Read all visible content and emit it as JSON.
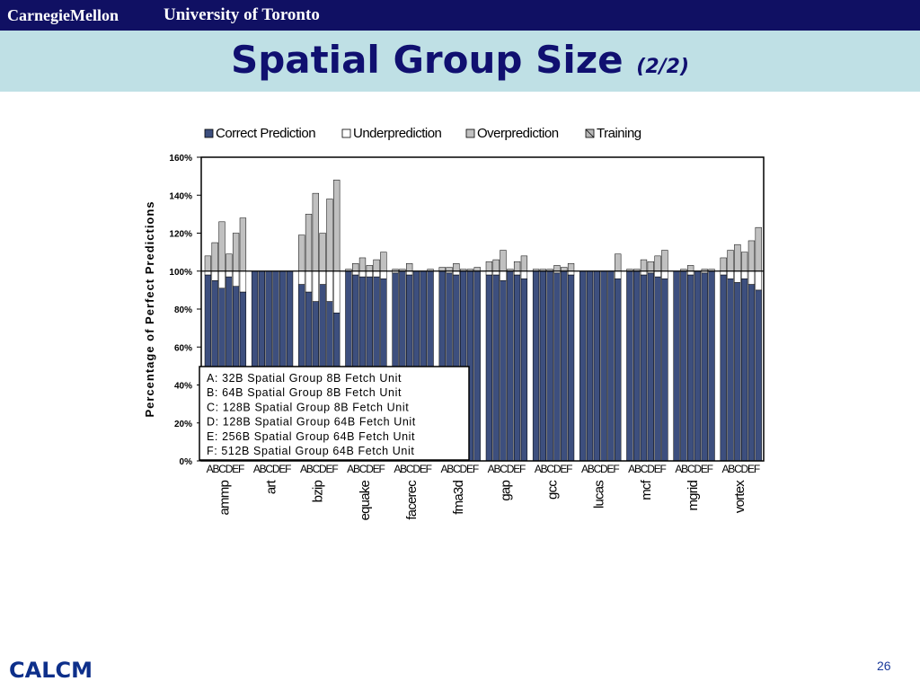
{
  "header": {
    "left_logo": "CarnegieMellon",
    "right_logo": "University of Toronto"
  },
  "title": {
    "main": "Spatial Group Size",
    "part": "(2/2)"
  },
  "footer": {
    "left": "CALCM",
    "page_number": "26"
  },
  "colors": {
    "header_bar": "#101063",
    "title_band": "#bfe0e5",
    "correct": "#3d4f7e",
    "under": "#ffffff",
    "over": "#c0c0c0",
    "training": "#b8b8b8"
  },
  "chart_data": {
    "type": "bar",
    "stacked": true,
    "ylabel": "Percentage of Perfect Predictions",
    "ylim": [
      0,
      160
    ],
    "yticks": [
      "0%",
      "20%",
      "40%",
      "60%",
      "80%",
      "100%",
      "120%",
      "140%",
      "160%"
    ],
    "reference_line": 100,
    "legend": [
      "Correct Prediction",
      "Underprediction",
      "Overprediction",
      "Training"
    ],
    "legend_position": "top",
    "variant_labels": [
      "A",
      "B",
      "C",
      "D",
      "E",
      "F"
    ],
    "variant_tick_label": "ABCDEF",
    "variants_legend": [
      "A: 32B Spatial Group 8B Fetch Unit",
      "B: 64B Spatial Group 8B Fetch Unit",
      "C: 128B Spatial Group 8B Fetch Unit",
      "D: 128B Spatial Group 64B Fetch Unit",
      "E: 256B Spatial Group 64B Fetch Unit",
      "F: 512B Spatial Group 64B Fetch Unit"
    ],
    "benchmarks": [
      {
        "name": "ammp",
        "correct": [
          98,
          95,
          91,
          97,
          92,
          89
        ],
        "over": [
          8,
          15,
          26,
          9,
          20,
          28
        ]
      },
      {
        "name": "art",
        "correct": [
          100,
          100,
          100,
          100,
          100,
          100
        ],
        "over": [
          0,
          0,
          0,
          0,
          0,
          0
        ]
      },
      {
        "name": "bzip",
        "correct": [
          93,
          89,
          84,
          93,
          84,
          78
        ],
        "over": [
          19,
          30,
          41,
          20,
          38,
          48
        ]
      },
      {
        "name": "equake",
        "correct": [
          100,
          98,
          97,
          97,
          97,
          96
        ],
        "over": [
          1,
          4,
          7,
          3,
          6,
          10
        ]
      },
      {
        "name": "facerec",
        "correct": [
          99,
          100,
          98,
          100,
          100,
          100
        ],
        "over": [
          1,
          1,
          4,
          0,
          0,
          1
        ]
      },
      {
        "name": "fma3d",
        "correct": [
          100,
          99,
          98,
          100,
          100,
          100
        ],
        "over": [
          2,
          2,
          4,
          1,
          1,
          2
        ]
      },
      {
        "name": "gap",
        "correct": [
          98,
          98,
          95,
          100,
          98,
          96
        ],
        "over": [
          5,
          6,
          11,
          1,
          5,
          8
        ]
      },
      {
        "name": "gcc",
        "correct": [
          100,
          100,
          100,
          99,
          100,
          98
        ],
        "over": [
          1,
          1,
          1,
          3,
          2,
          4
        ]
      },
      {
        "name": "lucas",
        "correct": [
          100,
          100,
          100,
          100,
          100,
          96
        ],
        "over": [
          0,
          0,
          0,
          0,
          0,
          9
        ]
      },
      {
        "name": "mcf",
        "correct": [
          100,
          100,
          98,
          99,
          97,
          96
        ],
        "over": [
          1,
          1,
          6,
          5,
          8,
          11
        ]
      },
      {
        "name": "mgrid",
        "correct": [
          100,
          100,
          98,
          100,
          99,
          100
        ],
        "over": [
          0,
          1,
          3,
          0,
          1,
          1
        ]
      },
      {
        "name": "vortex",
        "correct": [
          98,
          96,
          94,
          96,
          93,
          90
        ],
        "over": [
          7,
          11,
          14,
          10,
          16,
          23
        ]
      }
    ]
  }
}
